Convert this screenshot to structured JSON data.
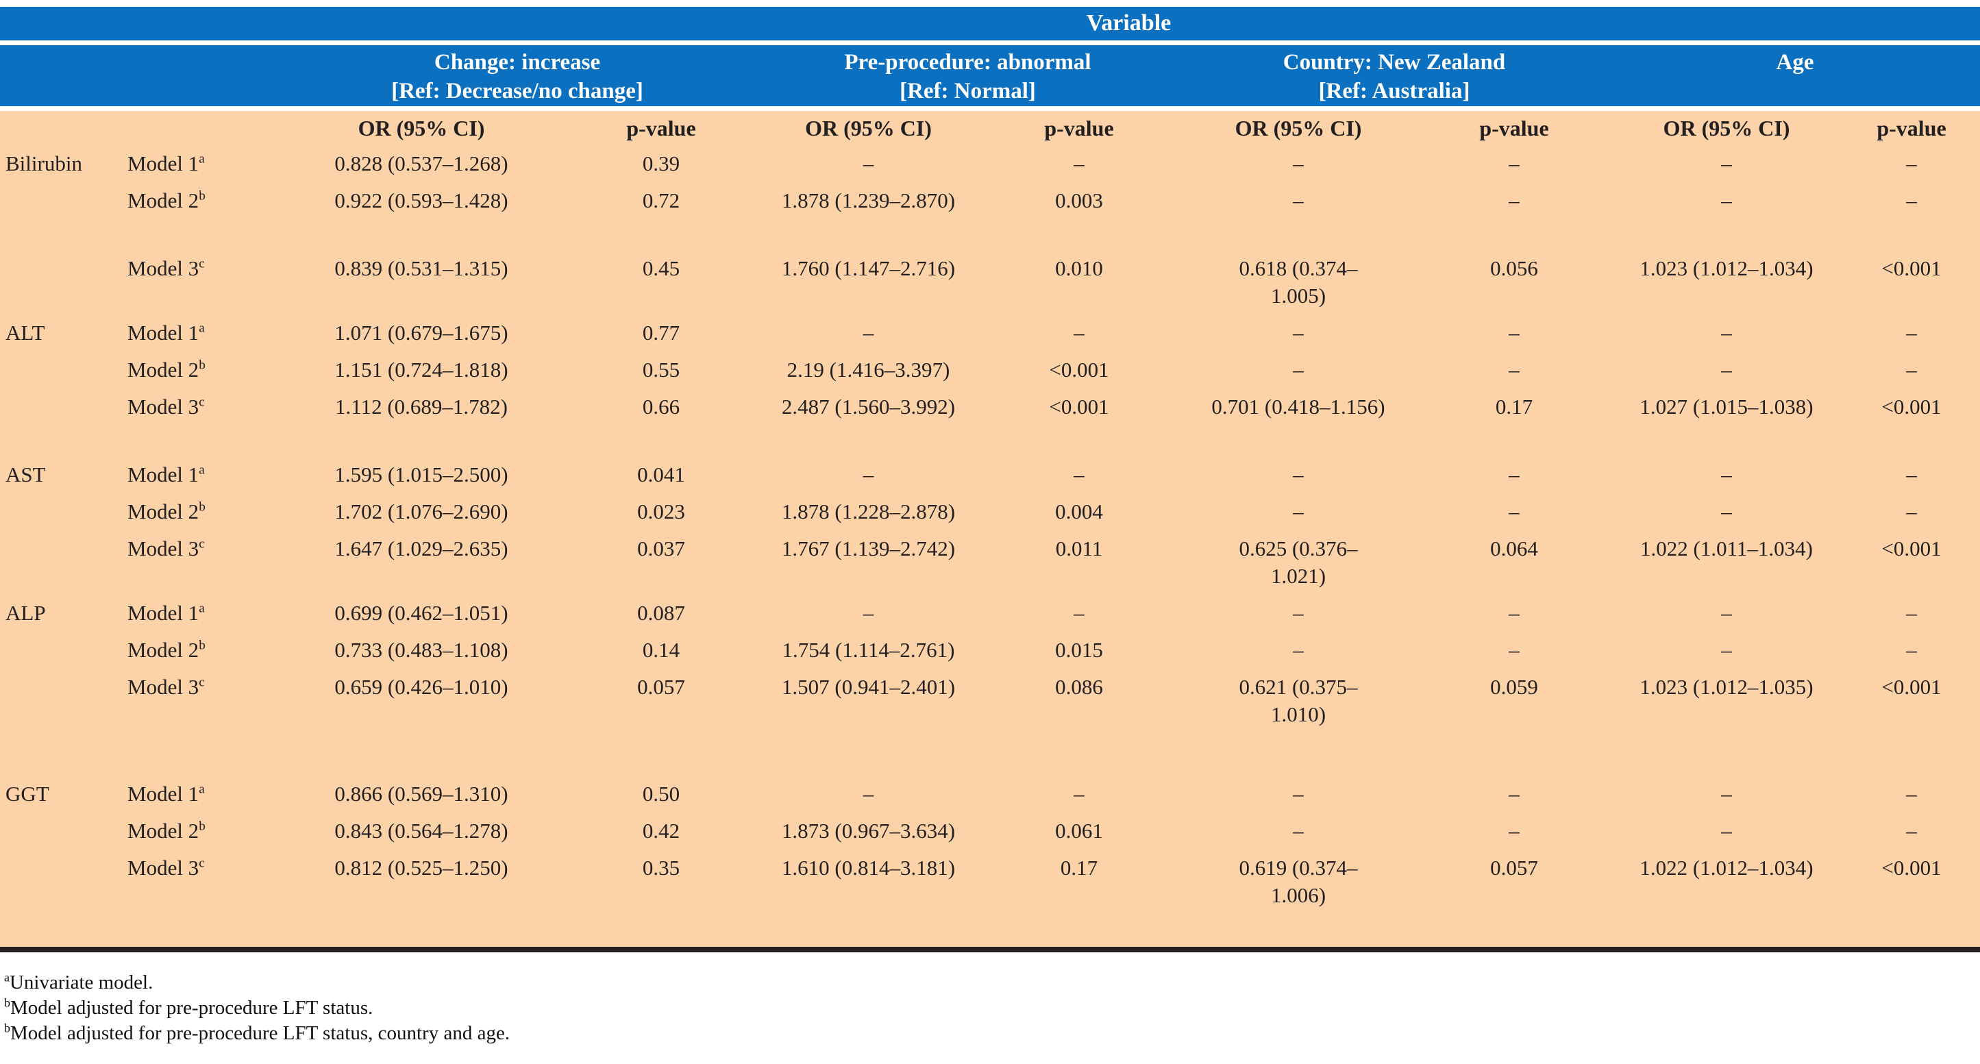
{
  "colors": {
    "header_blue": "#0b70c0",
    "body_peach": "#fcd3a8",
    "rule_ink": "#231f20"
  },
  "table": {
    "title": "Variable",
    "groups": [
      {
        "line1": "Change: increase",
        "line2": "[Ref: Decrease/no change]"
      },
      {
        "line1": "Pre-procedure: abnormal",
        "line2": "[Ref: Normal]"
      },
      {
        "line1": "Country: New Zealand",
        "line2": "[Ref: Australia]"
      },
      {
        "line1": "Age",
        "line2": ""
      }
    ],
    "sub_headers": [
      "OR (95% CI)",
      "p-value",
      "OR (95% CI)",
      "p-value",
      "OR (95% CI)",
      "p-value",
      "OR (95% CI)",
      "p-value"
    ]
  },
  "rows": [
    {
      "variable": "Bilirubin",
      "model": "Model 1",
      "sup": "a",
      "cells": [
        "0.828 (0.537–1.268)",
        "0.39",
        "–",
        "–",
        "–",
        "–",
        "–",
        "–"
      ]
    },
    {
      "variable": "",
      "model": "Model 2",
      "sup": "b",
      "cells": [
        "0.922 (0.593–1.428)",
        "0.72",
        "1.878 (1.239–2.870)",
        "0.003",
        "–",
        "–",
        "–",
        "–"
      ]
    },
    {
      "spacer": true,
      "size": "s"
    },
    {
      "variable": "",
      "model": "Model 3",
      "sup": "c",
      "cells": [
        "0.839 (0.531–1.315)",
        "0.45",
        "1.760 (1.147–2.716)",
        "0.010",
        "0.618 (0.374–\n1.005)",
        "0.056",
        "1.023 (1.012–1.034)",
        "<0.001"
      ]
    },
    {
      "variable": "ALT",
      "model": "Model 1",
      "sup": "a",
      "cells": [
        "1.071 (0.679–1.675)",
        "0.77",
        "–",
        "–",
        "–",
        "–",
        "–",
        "–"
      ]
    },
    {
      "variable": "",
      "model": "Model 2",
      "sup": "b",
      "cells": [
        "1.151 (0.724–1.818)",
        "0.55",
        "2.19 (1.416–3.397)",
        "<0.001",
        "–",
        "–",
        "–",
        "–"
      ]
    },
    {
      "variable": "",
      "model": "Model 3",
      "sup": "c",
      "cells": [
        "1.112 (0.689–1.782)",
        "0.66",
        "2.487 (1.560–3.992)",
        "<0.001",
        "0.701 (0.418–1.156)",
        "0.17",
        "1.027 (1.015–1.038)",
        "<0.001"
      ]
    },
    {
      "spacer": true,
      "size": "s"
    },
    {
      "variable": "AST",
      "model": "Model 1",
      "sup": "a",
      "cells": [
        "1.595 (1.015–2.500)",
        "0.041",
        "–",
        "–",
        "–",
        "–",
        "–",
        "–"
      ]
    },
    {
      "variable": "",
      "model": "Model 2",
      "sup": "b",
      "cells": [
        "1.702 (1.076–2.690)",
        "0.023",
        "1.878 (1.228–2.878)",
        "0.004",
        "–",
        "–",
        "–",
        "–"
      ]
    },
    {
      "variable": "",
      "model": "Model 3",
      "sup": "c",
      "cells": [
        "1.647 (1.029–2.635)",
        "0.037",
        "1.767 (1.139–2.742)",
        "0.011",
        "0.625 (0.376–\n1.021)",
        "0.064",
        "1.022 (1.011–1.034)",
        "<0.001"
      ]
    },
    {
      "variable": "ALP",
      "model": "Model 1",
      "sup": "a",
      "cells": [
        "0.699 (0.462–1.051)",
        "0.087",
        "–",
        "–",
        "–",
        "–",
        "–",
        "–"
      ]
    },
    {
      "variable": "",
      "model": "Model 2",
      "sup": "b",
      "cells": [
        "0.733 (0.483–1.108)",
        "0.14",
        "1.754 (1.114–2.761)",
        "0.015",
        "–",
        "–",
        "–",
        "–"
      ]
    },
    {
      "variable": "",
      "model": "Model 3",
      "sup": "c",
      "cells": [
        "0.659 (0.426–1.010)",
        "0.057",
        "1.507 (0.941–2.401)",
        "0.086",
        "0.621 (0.375–\n1.010)",
        "0.059",
        "1.023 (1.012–1.035)",
        "<0.001"
      ]
    },
    {
      "spacer": true,
      "size": "l"
    },
    {
      "variable": "GGT",
      "model": "Model 1",
      "sup": "a",
      "cells": [
        "0.866 (0.569–1.310)",
        "0.50",
        "–",
        "–",
        "–",
        "–",
        "–",
        "–"
      ]
    },
    {
      "variable": "",
      "model": "Model 2",
      "sup": "b",
      "cells": [
        "0.843 (0.564–1.278)",
        "0.42",
        "1.873 (0.967–3.634)",
        "0.061",
        "–",
        "–",
        "–",
        "–"
      ]
    },
    {
      "variable": "",
      "model": "Model 3",
      "sup": "c",
      "cells": [
        "0.812 (0.525–1.250)",
        "0.35",
        "1.610 (0.814–3.181)",
        "0.17",
        "0.619 (0.374–\n1.006)",
        "0.057",
        "1.022 (1.012–1.034)",
        "<0.001"
      ]
    },
    {
      "spacer": true,
      "size": "m"
    }
  ],
  "footnotes": [
    {
      "sup": "a",
      "text": "Univariate model."
    },
    {
      "sup": "b",
      "text": "Model adjusted for pre-procedure LFT status."
    },
    {
      "sup": "b",
      "text": "Model adjusted for pre-procedure LFT status, country and age."
    }
  ]
}
